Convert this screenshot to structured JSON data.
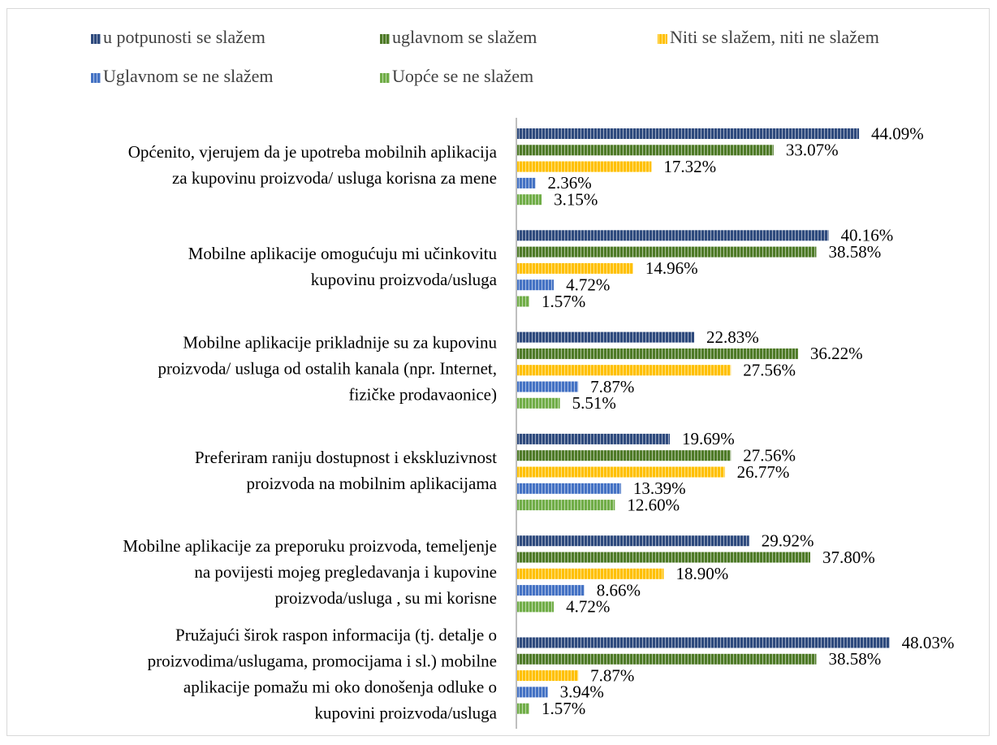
{
  "chart_data": {
    "type": "bar",
    "orientation": "horizontal",
    "categories": [
      [
        "Općenito, vjerujem da je upotreba mobilnih aplikacija",
        "za kupovinu proizvoda/ usluga korisna za mene"
      ],
      [
        "Mobilne aplikacije omogućuju mi učinkovitu",
        "kupovinu proizvoda/usluga"
      ],
      [
        "Mobilne aplikacije prikladnije su za kupovinu",
        "proizvoda/ usluga od ostalih kanala (npr. Internet,",
        "fizičke prodavaonice)"
      ],
      [
        "Preferiram raniju dostupnost i ekskluzivnost",
        "proizvoda na mobilnim aplikacijama"
      ],
      [
        "Mobilne aplikacije za preporuku proizvoda, temeljenje",
        "na povijesti mojeg pregledavanja i kupovine",
        "proizvoda/usluga , su mi korisne"
      ],
      [
        "Pružajući širok raspon informacija (tj. detalje o",
        "proizvodima/uslugama, promocijama i sl.) mobilne",
        "aplikacije pomažu mi oko donošenja odluke o",
        "kupovini proizvoda/usluga"
      ]
    ],
    "series": [
      {
        "name": "u potpunosti se slažem",
        "color": "#2e4a7d",
        "values": [
          44.09,
          40.16,
          22.83,
          19.69,
          29.92,
          48.03
        ],
        "value_labels": [
          "44.09%",
          "40.16%",
          "22.83%",
          "19.69%",
          "29.92%",
          "48.03%"
        ]
      },
      {
        "name": "uglavnom se slažem",
        "color": "#4e7a27",
        "values": [
          33.07,
          38.58,
          36.22,
          27.56,
          37.8,
          38.58
        ],
        "value_labels": [
          "33.07%",
          "38.58%",
          "36.22%",
          "27.56%",
          "37.80%",
          "38.58%"
        ]
      },
      {
        "name": "Niti se slažem, niti ne slažem",
        "color": "#ffc000",
        "values": [
          17.32,
          14.96,
          27.56,
          26.77,
          18.9,
          7.87
        ],
        "value_labels": [
          "17.32%",
          "14.96%",
          "27.56%",
          "26.77%",
          "18.90%",
          "7.87%"
        ]
      },
      {
        "name": "Uglavnom se ne slažem",
        "color": "#4472c4",
        "values": [
          2.36,
          4.72,
          7.87,
          13.39,
          8.66,
          3.94
        ],
        "value_labels": [
          "2.36%",
          "4.72%",
          "7.87%",
          "13.39%",
          "8.66%",
          "3.94%"
        ]
      },
      {
        "name": "Uopće se ne slažem",
        "color": "#70ad47",
        "values": [
          3.15,
          1.57,
          5.51,
          12.6,
          4.72,
          1.57
        ],
        "value_labels": [
          "3.15%",
          "1.57%",
          "5.51%",
          "12.60%",
          "4.72%",
          "1.57%"
        ]
      }
    ],
    "legend": "top"
  }
}
